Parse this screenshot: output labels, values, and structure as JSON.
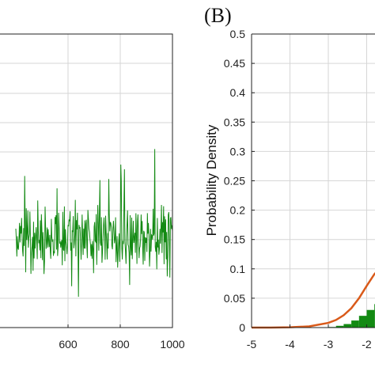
{
  "panels": {
    "b_label": "(B)"
  },
  "chart_data": [
    {
      "type": "line",
      "title": "",
      "xlabel": "",
      "ylabel": "",
      "xlim": [
        400,
        1000
      ],
      "x_ticks": [
        "600",
        "800",
        "1000"
      ],
      "grid": true,
      "color": "#138a13",
      "series": [
        {
          "description": "noisy time series",
          "x_start": 400,
          "x_end": 1000
        }
      ]
    },
    {
      "type": "area",
      "title": "",
      "xlabel": "",
      "ylabel": "Probability Density",
      "xlim": [
        -5,
        -1.6
      ],
      "ylim": [
        0,
        0.5
      ],
      "x_ticks": [
        "-5",
        "-4",
        "-3",
        "-2"
      ],
      "y_ticks": [
        "0",
        "0.05",
        "0.1",
        "0.15",
        "0.2",
        "0.25",
        "0.3",
        "0.35",
        "0.4",
        "0.45",
        "0.5"
      ],
      "grid": true,
      "curve_color": "#d95a1a",
      "hist_color": "#138a13",
      "series": [
        {
          "kind": "fitted-curve",
          "x": [
            -5,
            -4.5,
            -4,
            -3.5,
            -3,
            -2.8,
            -2.6,
            -2.4,
            -2.2,
            -2,
            -1.8,
            -1.6
          ],
          "y": [
            0,
            0,
            0.0005,
            0.002,
            0.008,
            0.013,
            0.021,
            0.033,
            0.05,
            0.071,
            0.091,
            0.104
          ]
        },
        {
          "kind": "histogram",
          "x": [
            -3,
            -2.8,
            -2.6,
            -2.4,
            -2.2,
            -2.0,
            -1.8,
            -1.7
          ],
          "y": [
            0.001,
            0.003,
            0.006,
            0.012,
            0.02,
            0.03,
            0.04,
            0.05
          ]
        }
      ]
    }
  ]
}
